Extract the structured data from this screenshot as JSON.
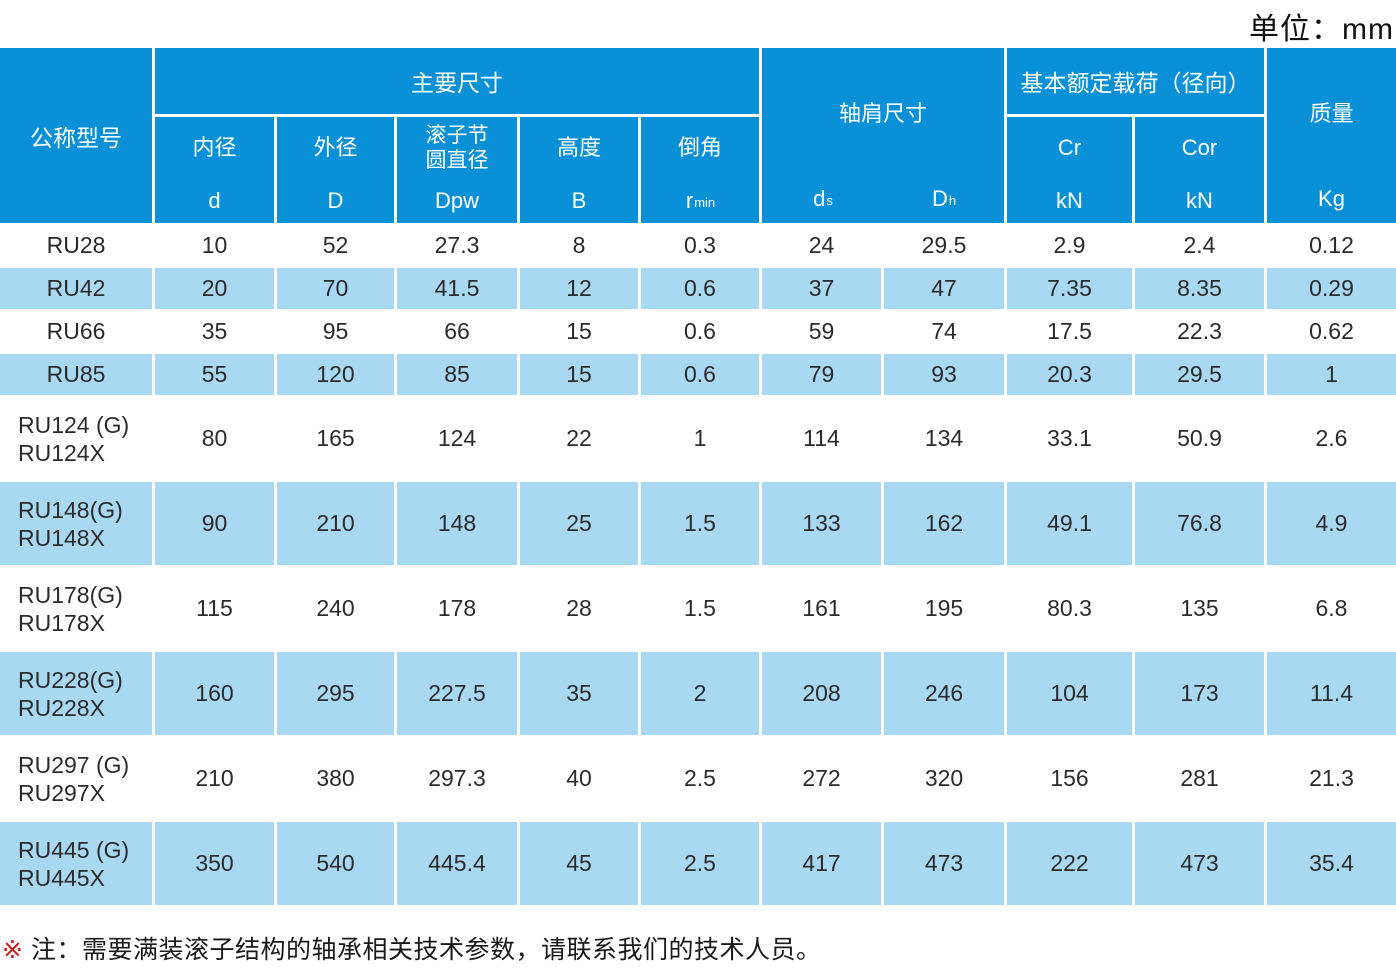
{
  "unit_label": "单位：mm",
  "colors": {
    "header_blue": "#0a90d7",
    "row_blue": "#a8d8f2",
    "data_text": "#2b2b2b",
    "header_text": "#ffffff",
    "note_marker": "#cc2222",
    "note_text": "#1a1a1a"
  },
  "header": {
    "model": "公称型号",
    "main_dims": "主要尺寸",
    "shoulder_dims": "轴肩尺寸",
    "load_rating": "基本额定载荷（径向）",
    "mass": "质量",
    "mass_unit": "Kg",
    "columns": {
      "bore_label": "内径",
      "bore_symbol": "d",
      "outer_label": "外径",
      "outer_symbol": "D",
      "pitch_label_line1": "滚子节",
      "pitch_label_line2": "圆直径",
      "pitch_symbol": "Dpw",
      "height_label": "高度",
      "height_symbol": "B",
      "chamfer_label": "倒角",
      "chamfer_symbol_base": "r",
      "chamfer_symbol_sub": "min",
      "shoulder_d_base": "d",
      "shoulder_d_sub": "s",
      "shoulder_D_base": "D",
      "shoulder_D_sub": "h",
      "cr_label": "Cr",
      "cr_unit": "kN",
      "cor_label": "Cor",
      "cor_unit": "kN"
    }
  },
  "rows": [
    {
      "model_lines": [
        "RU28"
      ],
      "shaded": false,
      "values": [
        "10",
        "52",
        "27.3",
        "8",
        "0.3",
        "24",
        "29.5",
        "2.9",
        "2.4",
        "0.12"
      ]
    },
    {
      "model_lines": [
        "RU42"
      ],
      "shaded": true,
      "values": [
        "20",
        "70",
        "41.5",
        "12",
        "0.6",
        "37",
        "47",
        "7.35",
        "8.35",
        "0.29"
      ]
    },
    {
      "model_lines": [
        "RU66"
      ],
      "shaded": false,
      "values": [
        "35",
        "95",
        "66",
        "15",
        "0.6",
        "59",
        "74",
        "17.5",
        "22.3",
        "0.62"
      ]
    },
    {
      "model_lines": [
        "RU85"
      ],
      "shaded": true,
      "values": [
        "55",
        "120",
        "85",
        "15",
        "0.6",
        "79",
        "93",
        "20.3",
        "29.5",
        "1"
      ]
    },
    {
      "model_lines": [
        "RU124 (G)",
        "RU124X"
      ],
      "shaded": false,
      "values": [
        "80",
        "165",
        "124",
        "22",
        "1",
        "114",
        "134",
        "33.1",
        "50.9",
        "2.6"
      ]
    },
    {
      "model_lines": [
        "RU148(G)",
        "RU148X"
      ],
      "shaded": true,
      "values": [
        "90",
        "210",
        "148",
        "25",
        "1.5",
        "133",
        "162",
        "49.1",
        "76.8",
        "4.9"
      ]
    },
    {
      "model_lines": [
        "RU178(G)",
        "RU178X"
      ],
      "shaded": false,
      "values": [
        "115",
        "240",
        "178",
        "28",
        "1.5",
        "161",
        "195",
        "80.3",
        "135",
        "6.8"
      ]
    },
    {
      "model_lines": [
        "RU228(G)",
        "RU228X"
      ],
      "shaded": true,
      "values": [
        "160",
        "295",
        "227.5",
        "35",
        "2",
        "208",
        "246",
        "104",
        "173",
        "11.4"
      ]
    },
    {
      "model_lines": [
        "RU297 (G)",
        "RU297X"
      ],
      "shaded": false,
      "values": [
        "210",
        "380",
        "297.3",
        "40",
        "2.5",
        "272",
        "320",
        "156",
        "281",
        "21.3"
      ]
    },
    {
      "model_lines": [
        "RU445 (G)",
        "RU445X"
      ],
      "shaded": true,
      "values": [
        "350",
        "540",
        "445.4",
        "45",
        "2.5",
        "417",
        "473",
        "222",
        "473",
        "35.4"
      ]
    }
  ],
  "note": {
    "marker": "※",
    "text": "注：需要满装滚子结构的轴承相关技术参数，请联系我们的技术人员。"
  }
}
